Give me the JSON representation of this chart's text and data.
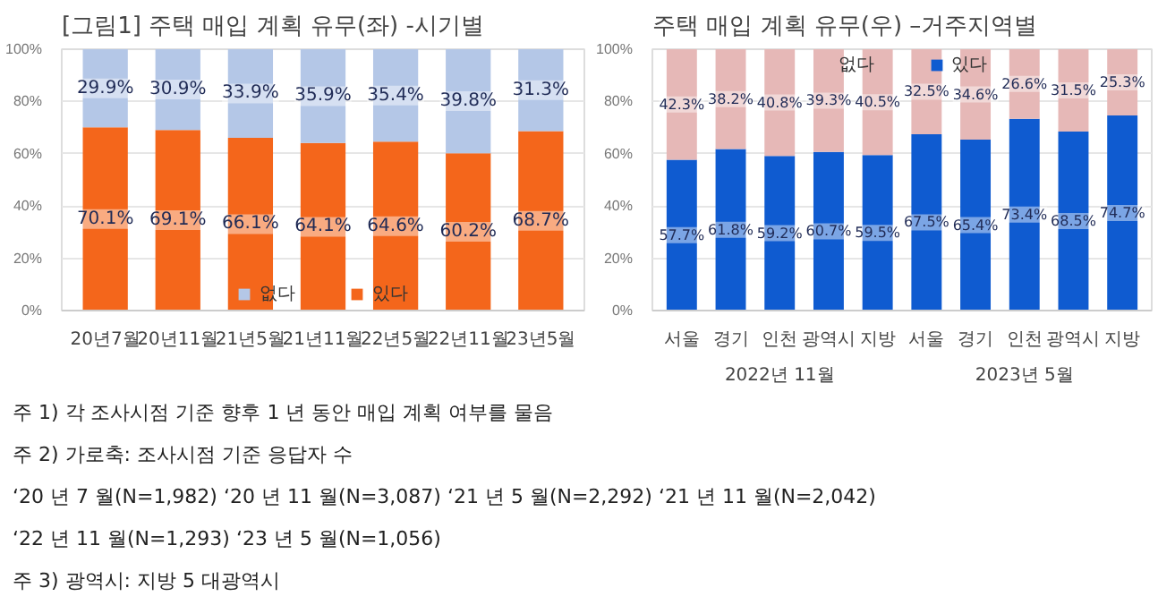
{
  "chart_data": [
    {
      "type": "bar",
      "title": "[그림1] 주택 매입 계획 유무(좌) -시기별",
      "stacked": true,
      "categories": [
        "20년7월",
        "20년11월",
        "21년5월",
        "21년11월",
        "22년5월",
        "22년11월",
        "23년5월"
      ],
      "series": [
        {
          "name": "있다",
          "color": "#f4661b",
          "values": [
            70.1,
            69.1,
            66.1,
            64.1,
            64.6,
            60.2,
            68.7
          ],
          "value_labels": [
            "70.1%",
            "69.1%",
            "66.1%",
            "64.1%",
            "64.6%",
            "60.2%",
            "68.7%"
          ]
        },
        {
          "name": "없다",
          "color": "#b4c7e7",
          "values": [
            29.9,
            30.9,
            33.9,
            35.9,
            35.4,
            39.8,
            31.3
          ],
          "value_labels": [
            "29.9%",
            "30.9%",
            "33.9%",
            "35.9%",
            "35.4%",
            "39.8%",
            "31.3%"
          ]
        }
      ],
      "ylim": [
        0,
        100
      ],
      "yticks": [
        {
          "value": 0,
          "label": "0%"
        },
        {
          "value": 20,
          "label": "20%"
        },
        {
          "value": 40,
          "label": "40%"
        },
        {
          "value": 60,
          "label": "60%"
        },
        {
          "value": 80,
          "label": "80%"
        },
        {
          "value": 100,
          "label": "100%"
        }
      ],
      "grid": "y",
      "legend": "bottom"
    },
    {
      "type": "bar",
      "title": "주택 매입 계획 유무(우) –거주지역별",
      "stacked": true,
      "categories": [
        "서울",
        "경기",
        "인천",
        "광역시",
        "지방",
        "서울",
        "경기",
        "인천",
        "광역시",
        "지방"
      ],
      "series": [
        {
          "name": "있다",
          "color": "#0f5bd0",
          "values": [
            57.7,
            61.8,
            59.2,
            60.7,
            59.5,
            67.5,
            65.4,
            73.4,
            68.5,
            74.7
          ],
          "value_labels": [
            "57.7%",
            "61.8%",
            "59.2%",
            "60.7%",
            "59.5%",
            "67.5%",
            "65.4%",
            "73.4%",
            "68.5%",
            "74.7%"
          ]
        },
        {
          "name": "없다",
          "color": "#e6b8b7",
          "values": [
            42.3,
            38.2,
            40.8,
            39.3,
            40.5,
            32.5,
            34.6,
            26.6,
            31.5,
            25.3
          ],
          "value_labels": [
            "42.3%",
            "38.2%",
            "40.8%",
            "39.3%",
            "40.5%",
            "32.5%",
            "34.6%",
            "26.6%",
            "31.5%",
            "25.3%"
          ]
        }
      ],
      "ylim": [
        0,
        100
      ],
      "yticks": [
        {
          "value": 0,
          "label": "0%"
        },
        {
          "value": 20,
          "label": "20%"
        },
        {
          "value": 40,
          "label": "40%"
        },
        {
          "value": 60,
          "label": "60%"
        },
        {
          "value": 80,
          "label": "80%"
        },
        {
          "value": 100,
          "label": "100%"
        }
      ],
      "grid": "y",
      "legend": "top",
      "annotations": [
        "2022년 11월",
        "2023년 5월"
      ]
    },
    {
      "type": "other",
      "annotations": [
        "주 1) 각 조사시점 기준 향후 1 년 동안 매입 계획 여부를 물음",
        "주 2) 가로축: 조사시점 기준 응답자 수",
        "‘20 년 7 월(N=1,982) ‘20 년 11 월(N=3,087) ‘21 년 5 월(N=2,292) ‘21 년 11 월(N=2,042)",
        "‘22 년 11 월(N=1,293) ‘23 년 5 월(N=1,056)",
        "주 3) 광역시: 지방 5 대광역시"
      ]
    }
  ]
}
